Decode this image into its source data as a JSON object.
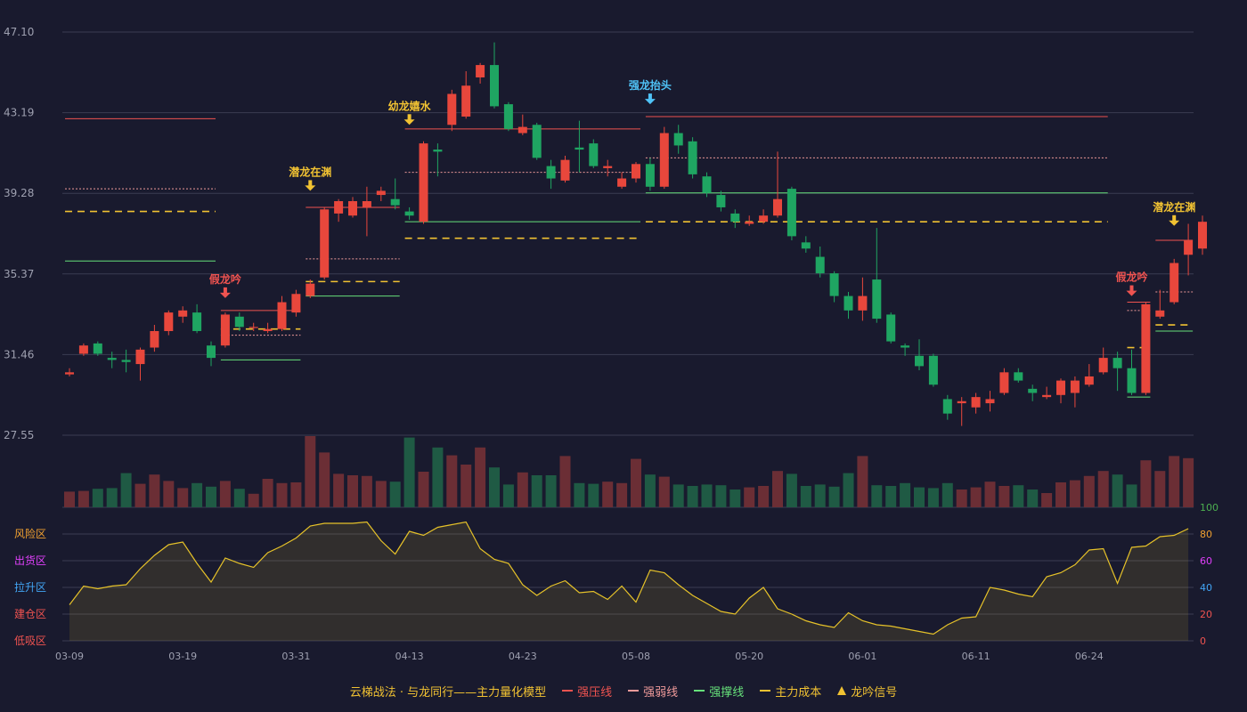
{
  "chart_data": {
    "type": "candlestick",
    "y_ticks": [
      "47.10",
      "43.19",
      "39.28",
      "35.37",
      "31.46",
      "27.55"
    ],
    "ylim": [
      27.55,
      47.1
    ],
    "x_ticks": [
      {
        "i": 0,
        "label": "03-09"
      },
      {
        "i": 8,
        "label": "03-19"
      },
      {
        "i": 16,
        "label": "03-31"
      },
      {
        "i": 24,
        "label": "04-13"
      },
      {
        "i": 32,
        "label": "04-23"
      },
      {
        "i": 40,
        "label": "05-08"
      },
      {
        "i": 48,
        "label": "05-20"
      },
      {
        "i": 56,
        "label": "06-01"
      },
      {
        "i": 64,
        "label": "06-11"
      },
      {
        "i": 72,
        "label": "06-24"
      }
    ],
    "candles": [
      [
        30.5,
        30.6,
        30.8,
        30.4
      ],
      [
        31.5,
        31.9,
        32.0,
        31.4
      ],
      [
        32.0,
        31.5,
        32.1,
        31.4
      ],
      [
        31.3,
        31.2,
        31.6,
        30.8
      ],
      [
        31.2,
        31.1,
        31.7,
        30.6
      ],
      [
        31.0,
        31.7,
        31.8,
        30.2
      ],
      [
        31.8,
        32.6,
        32.9,
        31.6
      ],
      [
        32.6,
        33.5,
        33.6,
        32.4
      ],
      [
        33.3,
        33.6,
        33.8,
        33.0
      ],
      [
        33.5,
        32.6,
        33.9,
        32.5
      ],
      [
        31.9,
        31.3,
        32.1,
        30.9
      ],
      [
        31.9,
        33.4,
        33.5,
        31.8
      ],
      [
        33.3,
        32.8,
        33.5,
        32.6
      ],
      [
        32.8,
        32.8,
        33.0,
        32.6
      ],
      [
        32.6,
        32.7,
        33.0,
        32.5
      ],
      [
        32.7,
        34.0,
        34.3,
        32.6
      ],
      [
        33.5,
        34.4,
        34.6,
        33.3
      ],
      [
        34.3,
        34.9,
        35.1,
        34.2
      ],
      [
        35.2,
        38.5,
        38.6,
        35.1
      ],
      [
        38.3,
        38.9,
        39.0,
        37.9
      ],
      [
        38.2,
        38.9,
        39.1,
        38.1
      ],
      [
        38.6,
        38.9,
        39.6,
        37.2
      ],
      [
        39.2,
        39.4,
        39.6,
        38.9
      ],
      [
        39.0,
        38.7,
        40.0,
        38.5
      ],
      [
        38.4,
        38.2,
        38.6,
        38.0
      ],
      [
        37.9,
        41.7,
        41.8,
        37.8
      ],
      [
        41.4,
        41.3,
        41.7,
        40.1
      ],
      [
        42.6,
        44.1,
        44.3,
        42.3
      ],
      [
        43.0,
        44.5,
        45.2,
        42.9
      ],
      [
        44.9,
        45.5,
        45.6,
        44.6
      ],
      [
        45.5,
        43.5,
        46.6,
        43.4
      ],
      [
        43.6,
        42.4,
        43.7,
        42.3
      ],
      [
        42.2,
        42.5,
        43.1,
        42.1
      ],
      [
        42.6,
        41.0,
        42.7,
        40.9
      ],
      [
        40.6,
        40.0,
        40.9,
        39.5
      ],
      [
        39.9,
        40.9,
        41.1,
        39.8
      ],
      [
        41.5,
        41.4,
        42.8,
        40.3
      ],
      [
        41.7,
        40.6,
        41.9,
        40.5
      ],
      [
        40.5,
        40.6,
        40.9,
        40.1
      ],
      [
        39.6,
        40.0,
        40.3,
        39.5
      ],
      [
        40.0,
        40.7,
        40.8,
        39.8
      ],
      [
        40.7,
        39.6,
        41.0,
        39.4
      ],
      [
        39.6,
        42.2,
        42.5,
        39.5
      ],
      [
        42.2,
        41.6,
        42.6,
        41.2
      ],
      [
        41.8,
        40.2,
        42.0,
        40.0
      ],
      [
        40.1,
        39.3,
        40.3,
        39.1
      ],
      [
        39.2,
        38.6,
        39.4,
        38.4
      ],
      [
        38.3,
        37.9,
        38.5,
        37.6
      ],
      [
        37.8,
        37.9,
        38.2,
        37.7
      ],
      [
        37.9,
        38.2,
        38.5,
        37.8
      ],
      [
        38.2,
        39.0,
        41.3,
        38.1
      ],
      [
        39.5,
        37.2,
        39.6,
        37.0
      ],
      [
        36.9,
        36.6,
        37.2,
        36.4
      ],
      [
        36.2,
        35.4,
        36.7,
        35.2
      ],
      [
        35.4,
        34.3,
        35.5,
        34.0
      ],
      [
        34.3,
        33.6,
        34.5,
        33.2
      ],
      [
        33.6,
        34.3,
        35.2,
        33.1
      ],
      [
        35.1,
        33.2,
        37.6,
        33.0
      ],
      [
        33.4,
        32.1,
        33.5,
        32.0
      ],
      [
        31.9,
        31.8,
        32.0,
        31.4
      ],
      [
        31.4,
        30.9,
        32.2,
        30.7
      ],
      [
        31.4,
        30.0,
        31.5,
        29.9
      ],
      [
        29.3,
        28.6,
        29.5,
        28.3
      ],
      [
        29.1,
        29.2,
        29.4,
        28.0
      ],
      [
        28.9,
        29.4,
        29.6,
        28.6
      ],
      [
        29.1,
        29.3,
        29.7,
        28.7
      ],
      [
        29.6,
        30.6,
        30.8,
        29.5
      ],
      [
        30.6,
        30.2,
        30.8,
        30.1
      ],
      [
        29.8,
        29.6,
        30.0,
        29.2
      ],
      [
        29.4,
        29.5,
        29.9,
        29.3
      ],
      [
        29.5,
        30.2,
        30.3,
        29.1
      ],
      [
        29.6,
        30.2,
        30.4,
        28.9
      ],
      [
        30.0,
        30.4,
        31.0,
        29.9
      ],
      [
        30.6,
        31.3,
        31.8,
        30.5
      ],
      [
        31.3,
        30.8,
        31.6,
        29.7
      ],
      [
        30.8,
        29.6,
        31.7,
        29.5
      ],
      [
        29.6,
        33.9,
        34.0,
        29.5
      ],
      [
        33.3,
        33.6,
        34.6,
        33.2
      ],
      [
        34.0,
        35.9,
        36.1,
        33.9
      ],
      [
        36.3,
        37.0,
        37.8,
        35.3
      ],
      [
        36.6,
        37.9,
        38.2,
        36.3
      ]
    ],
    "volumes": [
      22,
      23,
      26,
      27,
      48,
      33,
      46,
      37,
      27,
      34,
      29,
      37,
      26,
      19,
      40,
      34,
      35,
      100,
      77,
      47,
      45,
      44,
      37,
      36,
      98,
      50,
      84,
      73,
      60,
      84,
      56,
      32,
      49,
      45,
      45,
      72,
      34,
      33,
      36,
      34,
      68,
      46,
      43,
      32,
      30,
      32,
      31,
      25,
      28,
      30,
      51,
      47,
      30,
      32,
      29,
      48,
      72,
      31,
      30,
      34,
      28,
      27,
      34,
      25,
      28,
      36,
      30,
      31,
      25,
      20,
      35,
      38,
      44,
      51,
      46,
      32,
      66,
      51,
      72,
      69
    ],
    "indicator": [
      27,
      41,
      39,
      41,
      42,
      54,
      64,
      72,
      74,
      58,
      44,
      62,
      58,
      55,
      66,
      71,
      77,
      86,
      88,
      88,
      88,
      89,
      75,
      65,
      82,
      79,
      85,
      87,
      89,
      69,
      61,
      58,
      42,
      34,
      41,
      45,
      36,
      37,
      31,
      41,
      29,
      53,
      51,
      42,
      34,
      28,
      22,
      20,
      32,
      40,
      24,
      20,
      15,
      12,
      10,
      21,
      15,
      12,
      11,
      9,
      7,
      5,
      12,
      17,
      18,
      40,
      38,
      35,
      33,
      48,
      51,
      57,
      68,
      69,
      43,
      70,
      71,
      78,
      79,
      84
    ],
    "levels": [
      {
        "type": "strong_pressure",
        "from": 0,
        "to": 10,
        "value": 42.9
      },
      {
        "type": "strong_weak",
        "from": 0,
        "to": 10,
        "value": 39.5
      },
      {
        "type": "main_cost",
        "from": 0,
        "to": 10,
        "value": 38.4
      },
      {
        "type": "strong_support",
        "from": 0,
        "to": 10,
        "value": 36.0
      },
      {
        "type": "strong_pressure",
        "from": 11,
        "to": 16,
        "value": 33.6
      },
      {
        "type": "strong_weak",
        "from": 11,
        "to": 16,
        "value": 32.4
      },
      {
        "type": "main_cost",
        "from": 11,
        "to": 16,
        "value": 32.7
      },
      {
        "type": "strong_support",
        "from": 11,
        "to": 16,
        "value": 31.2
      },
      {
        "type": "strong_pressure",
        "from": 17,
        "to": 23,
        "value": 38.6
      },
      {
        "type": "strong_weak",
        "from": 17,
        "to": 23,
        "value": 36.1
      },
      {
        "type": "main_cost",
        "from": 17,
        "to": 23,
        "value": 35.0
      },
      {
        "type": "strong_support",
        "from": 17,
        "to": 23,
        "value": 34.3
      },
      {
        "type": "strong_pressure",
        "from": 24,
        "to": 40,
        "value": 42.4
      },
      {
        "type": "strong_weak",
        "from": 24,
        "to": 40,
        "value": 40.3
      },
      {
        "type": "main_cost",
        "from": 24,
        "to": 40,
        "value": 37.1
      },
      {
        "type": "strong_support",
        "from": 24,
        "to": 40,
        "value": 37.9
      },
      {
        "type": "strong_pressure",
        "from": 41,
        "to": 73,
        "value": 43.0
      },
      {
        "type": "strong_weak",
        "from": 41,
        "to": 73,
        "value": 41.0
      },
      {
        "type": "main_cost",
        "from": 41,
        "to": 73,
        "value": 37.9
      },
      {
        "type": "strong_support",
        "from": 41,
        "to": 73,
        "value": 39.3
      },
      {
        "type": "strong_pressure",
        "from": 75,
        "to": 76,
        "value": 34.0
      },
      {
        "type": "strong_weak",
        "from": 75,
        "to": 76,
        "value": 33.6
      },
      {
        "type": "main_cost",
        "from": 75,
        "to": 76,
        "value": 31.8
      },
      {
        "type": "strong_support",
        "from": 75,
        "to": 76,
        "value": 29.4
      },
      {
        "type": "strong_pressure",
        "from": 77,
        "to": 79,
        "value": 37.0
      },
      {
        "type": "strong_weak",
        "from": 77,
        "to": 79,
        "value": 34.5
      },
      {
        "type": "main_cost",
        "from": 77,
        "to": 79,
        "value": 32.9
      },
      {
        "type": "strong_support",
        "from": 77,
        "to": 79,
        "value": 32.6
      }
    ],
    "signals": [
      {
        "i": 11,
        "label": "假龙吟",
        "color": "#ef5350",
        "value": 34.2
      },
      {
        "i": 17,
        "label": "潜龙在渊",
        "color": "#f1c232",
        "value": 39.4
      },
      {
        "i": 24,
        "label": "幼龙嬉水",
        "color": "#f1c232",
        "value": 42.6
      },
      {
        "i": 41,
        "label": "强龙抬头",
        "color": "#4fc3f7",
        "value": 43.6
      },
      {
        "i": 75,
        "label": "假龙吟",
        "color": "#ef5350",
        "value": 34.3
      },
      {
        "i": 78,
        "label": "潜龙在渊",
        "color": "#f1c232",
        "value": 37.7
      }
    ],
    "zones": [
      {
        "label": "风险区",
        "color": "#f0a030"
      },
      {
        "label": "出货区",
        "color": "#e040fb"
      },
      {
        "label": "拉升区",
        "color": "#42a5f5"
      },
      {
        "label": "建仓区",
        "color": "#ef5350"
      },
      {
        "label": "低吸区",
        "color": "#ef5350"
      }
    ],
    "indicator_ticks": [
      {
        "v": 100,
        "label": "100",
        "color": "#4caf50"
      },
      {
        "v": 80,
        "label": "80",
        "color": "#f0a030"
      },
      {
        "v": 60,
        "label": "60",
        "color": "#e040fb"
      },
      {
        "v": 40,
        "label": "40",
        "color": "#42a5f5"
      },
      {
        "v": 20,
        "label": "20",
        "color": "#ef5350"
      },
      {
        "v": 0,
        "label": "0",
        "color": "#ef5350"
      }
    ],
    "colors": {
      "up": "#e8473c",
      "down": "#1fa562",
      "up_vol": "#6b2e35",
      "down_vol": "#1f5a44",
      "strong_pressure": "#ef5350",
      "strong_weak": "#ef9a9a",
      "strong_support": "#66e07a",
      "main_cost": "#f1c232",
      "indicator_line": "#e6c229",
      "grid": "#3a3c52",
      "axis_text": "#9ea0b0"
    }
  },
  "legend": {
    "title": "云梯战法 · 与龙同行——主力量化模型",
    "items": [
      {
        "label": "强压线",
        "color": "#ef5350",
        "style": "solid"
      },
      {
        "label": "强弱线",
        "color": "#ef9a9a",
        "style": "dash"
      },
      {
        "label": "强撑线",
        "color": "#66e07a",
        "style": "solid"
      },
      {
        "label": "主力成本",
        "color": "#f1c232",
        "style": "dash"
      },
      {
        "label": "龙吟信号",
        "color": "#f1c232",
        "style": "triangle"
      }
    ]
  }
}
